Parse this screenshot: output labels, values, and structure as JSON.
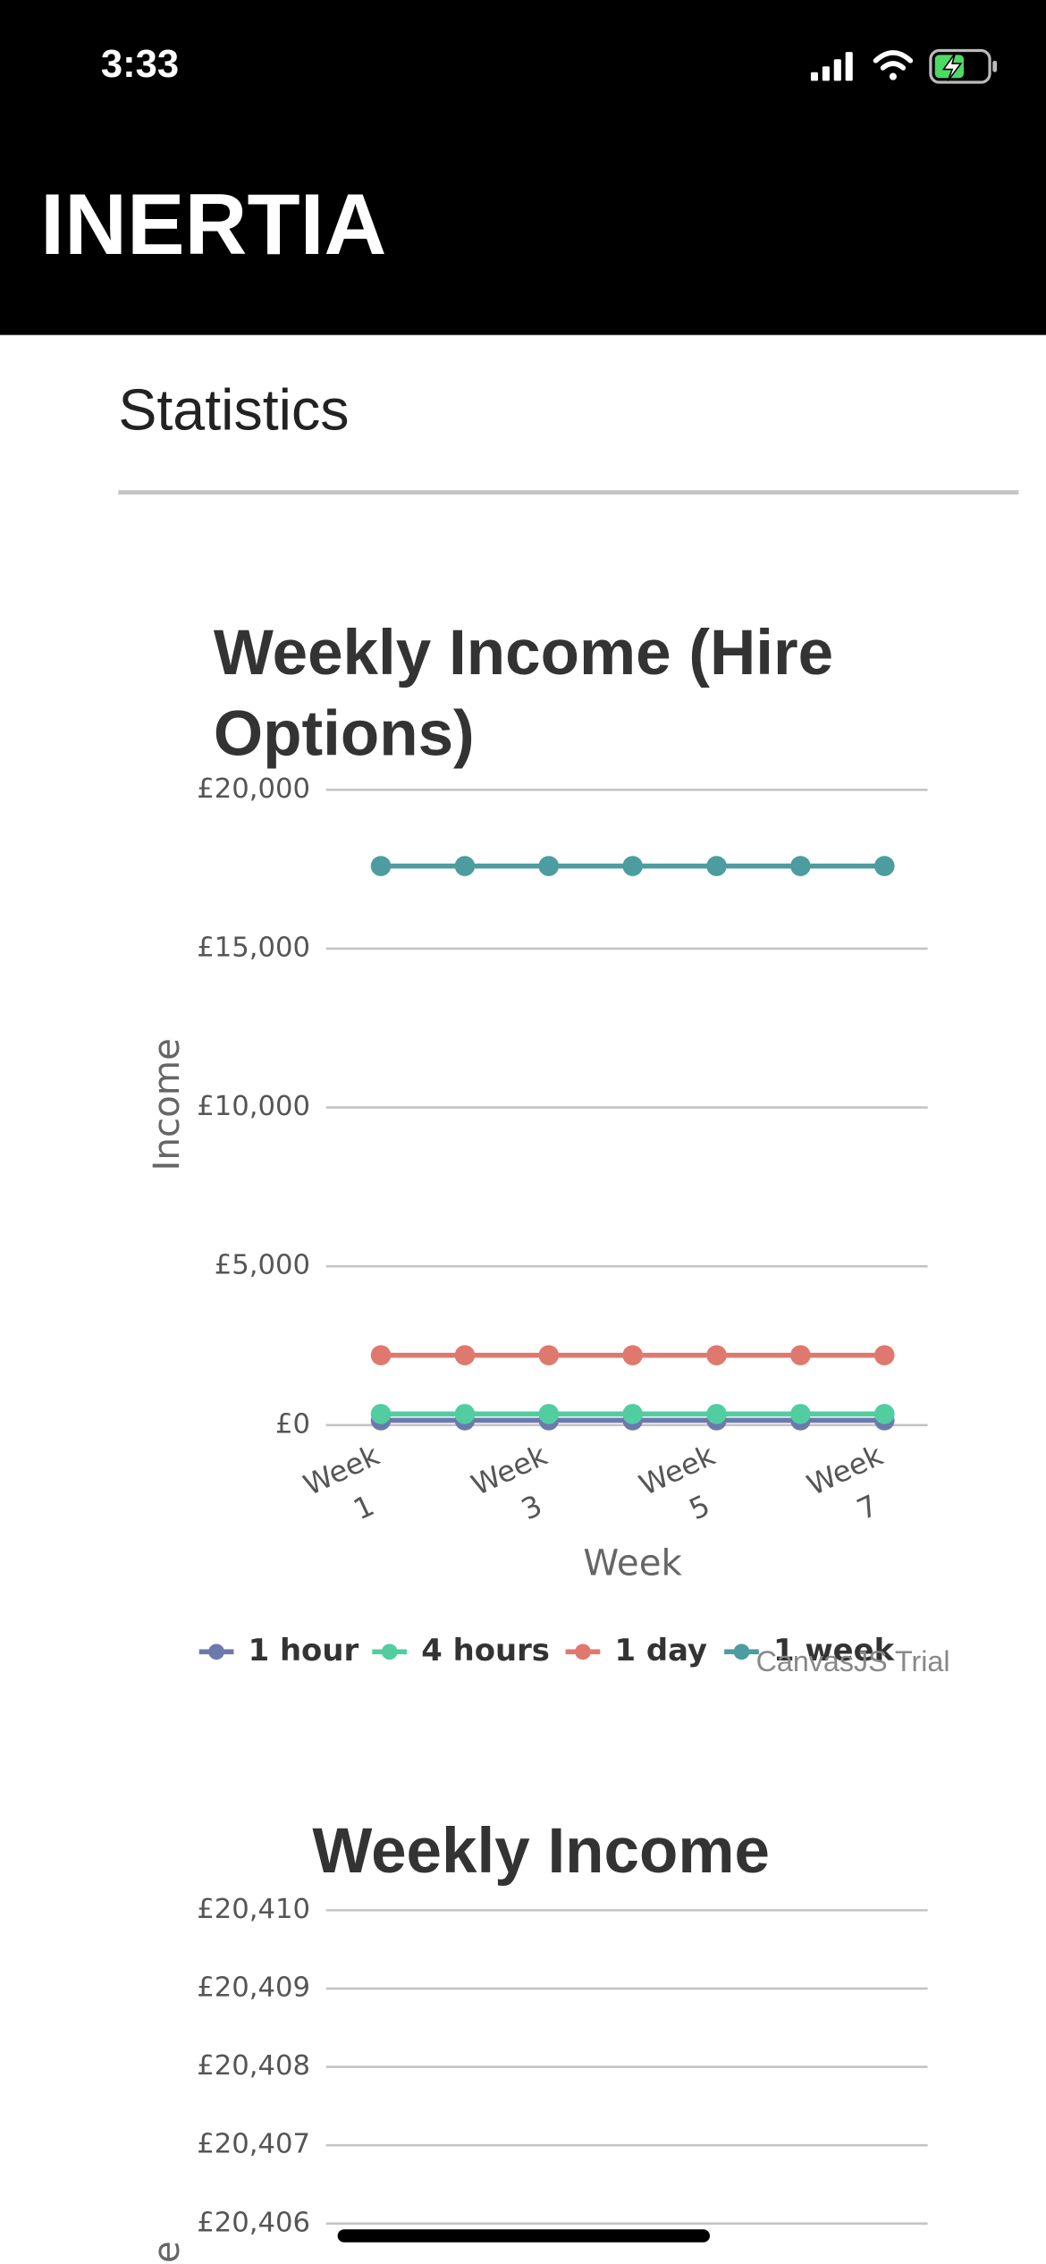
{
  "status_bar": {
    "time": "3:33"
  },
  "header": {
    "title": "INERTIA"
  },
  "section": {
    "title": "Statistics"
  },
  "chart_data": [
    {
      "type": "line",
      "title": "Weekly Income (Hire Options)",
      "x_label": "Week",
      "y_label": "Income",
      "categories": [
        "Week 1",
        null,
        "Week 3",
        null,
        "Week 5",
        null,
        "Week 7"
      ],
      "series": [
        {
          "name": "1 hour",
          "color": "#6d78ad",
          "values": [
            150,
            150,
            150,
            150,
            150,
            150,
            150
          ]
        },
        {
          "name": "4 hours",
          "color": "#51cda0",
          "values": [
            350,
            350,
            350,
            350,
            350,
            350,
            350
          ]
        },
        {
          "name": "1 day",
          "color": "#df7970",
          "values": [
            2200,
            2200,
            2200,
            2200,
            2200,
            2200,
            2200
          ]
        },
        {
          "name": "1 week",
          "color": "#4c9ca0",
          "values": [
            17600,
            17600,
            17600,
            17600,
            17600,
            17600,
            17600
          ]
        }
      ],
      "ylim": [
        0,
        20000
      ],
      "yticks": [
        {
          "value": 0,
          "label": "£0"
        },
        {
          "value": 5000,
          "label": "£5,000"
        },
        {
          "value": 10000,
          "label": "£10,000"
        },
        {
          "value": 15000,
          "label": "£15,000"
        },
        {
          "value": 20000,
          "label": "£20,000"
        }
      ],
      "grid": true,
      "legend": "bottom",
      "watermark": "CanvasJS Trial"
    },
    {
      "type": "line",
      "title": "Weekly Income",
      "y_label": "Income",
      "series": [],
      "ylim": [
        20406,
        20410
      ],
      "yticks": [
        {
          "value": 20406,
          "label": "£20,406"
        },
        {
          "value": 20407,
          "label": "£20,407"
        },
        {
          "value": 20408,
          "label": "£20,408"
        },
        {
          "value": 20409,
          "label": "£20,409"
        },
        {
          "value": 20410,
          "label": "£20,410"
        }
      ],
      "grid": true
    }
  ]
}
